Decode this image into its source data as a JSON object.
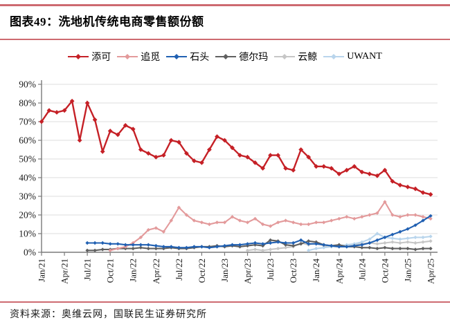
{
  "page": {
    "title": "图表49：洗地机传统电商零售额份额",
    "source": "资料来源：奥维云网，国联民生证券研究所"
  },
  "colors": {
    "separator": "#cd6a70",
    "grid": "#dcdcdc",
    "axis": "#7a7a7a",
    "tick_text": "#1a1a1a"
  },
  "legend": {
    "items": [
      {
        "id": "tianke",
        "label": "添可",
        "color": "#c52026"
      },
      {
        "id": "zhuimi",
        "label": "追觅",
        "color": "#e39a9b"
      },
      {
        "id": "shitou",
        "label": "石头",
        "color": "#2060b2"
      },
      {
        "id": "deerma",
        "label": "德尔玛",
        "color": "#5f5f5f"
      },
      {
        "id": "yunjing",
        "label": "云鲸",
        "color": "#c6c6c6"
      },
      {
        "id": "uwant",
        "label": "UWANT",
        "color": "#b9d5ec"
      }
    ]
  },
  "chart_data": {
    "type": "line",
    "title": "洗地机传统电商零售额份额",
    "xlabel": "",
    "ylabel": "",
    "ylim": [
      0,
      90
    ],
    "grid": true,
    "legend_position": "top",
    "y_tick_labels": [
      "0%",
      "10%",
      "20%",
      "30%",
      "40%",
      "50%",
      "60%",
      "70%",
      "80%",
      "90%"
    ],
    "x": [
      "Jan/21",
      "Feb/21",
      "Mar/21",
      "Apr/21",
      "May/21",
      "Jun/21",
      "Jul/21",
      "Aug/21",
      "Sep/21",
      "Oct/21",
      "Nov/21",
      "Dec/21",
      "Jan/22",
      "Feb/22",
      "Mar/22",
      "Apr/22",
      "May/22",
      "Jun/22",
      "Jul/22",
      "Aug/22",
      "Sep/22",
      "Oct/22",
      "Nov/22",
      "Dec/22",
      "Jan/23",
      "Feb/23",
      "Mar/23",
      "Apr/23",
      "May/23",
      "Jun/23",
      "Jul/23",
      "Aug/23",
      "Sep/23",
      "Oct/23",
      "Nov/23",
      "Dec/23",
      "Jan/24",
      "Feb/24",
      "Mar/24",
      "Apr/24",
      "May/24",
      "Jun/24",
      "Jul/24",
      "Aug/24",
      "Sep/24",
      "Oct/24",
      "Nov/24",
      "Dec/24",
      "Jan/25",
      "Feb/25",
      "Mar/25",
      "Apr/25"
    ],
    "x_tick_labels": [
      "Jan/21",
      "Apr/21",
      "Jul/21",
      "Oct/21",
      "Jan/22",
      "Apr/22",
      "Jul/22",
      "Oct/22",
      "Jan/23",
      "Apr/23",
      "Jul/23",
      "Oct/23",
      "Jan/24",
      "Apr/24",
      "Jul/24",
      "Oct/24",
      "Jan/25",
      "Apr/25"
    ],
    "unit": "percent",
    "series": [
      {
        "id": "yunjing",
        "name": "云鲸",
        "color": "#c6c6c6",
        "values": [
          null,
          null,
          null,
          null,
          null,
          null,
          null,
          null,
          null,
          null,
          null,
          null,
          null,
          null,
          null,
          null,
          null,
          null,
          null,
          null,
          null,
          null,
          null,
          null,
          null,
          null,
          null,
          1,
          1.5,
          1,
          1.5,
          2,
          2.5,
          3,
          5,
          4,
          5,
          3.5,
          3,
          3,
          3.5,
          4,
          4.5,
          5,
          4.5,
          5,
          5.5,
          5,
          5.5,
          5,
          5.5,
          6
        ]
      },
      {
        "id": "uwant",
        "name": "UWANT",
        "color": "#b9d5ec",
        "values": [
          null,
          null,
          null,
          null,
          null,
          null,
          null,
          null,
          null,
          null,
          null,
          null,
          null,
          null,
          null,
          null,
          null,
          null,
          null,
          null,
          null,
          null,
          null,
          null,
          null,
          null,
          null,
          null,
          null,
          null,
          null,
          null,
          null,
          null,
          null,
          1,
          2,
          2.5,
          3,
          3.5,
          4,
          4.5,
          5.5,
          7,
          10,
          8,
          7.5,
          7,
          7.5,
          8,
          8,
          8.5
        ]
      },
      {
        "id": "deerma",
        "name": "德尔玛",
        "color": "#5f5f5f",
        "values": [
          null,
          null,
          null,
          null,
          null,
          null,
          1,
          1,
          1.5,
          1.5,
          2,
          2,
          2,
          2.5,
          2,
          2,
          2,
          2.5,
          2,
          2,
          2.5,
          3,
          3,
          3.5,
          3,
          3.5,
          3,
          3.5,
          4,
          3.5,
          6.5,
          6,
          4,
          3.5,
          4.5,
          6,
          5.5,
          4,
          3.5,
          4,
          3,
          3,
          2.5,
          2.5,
          2,
          2.5,
          2,
          2,
          2,
          1.5,
          2,
          2
        ]
      },
      {
        "id": "zhuimi",
        "name": "追觅",
        "color": "#e39a9b",
        "values": [
          null,
          null,
          null,
          null,
          null,
          null,
          null,
          null,
          null,
          1,
          2,
          3,
          5,
          8,
          12,
          13,
          11,
          17,
          24,
          20,
          17,
          16,
          15,
          16,
          16,
          19,
          17,
          16,
          18,
          15,
          14,
          16,
          17,
          16,
          15,
          15,
          16,
          16,
          17,
          18,
          19,
          18,
          19,
          20,
          21,
          27,
          20,
          19,
          20,
          20,
          19,
          18
        ]
      },
      {
        "id": "shitou",
        "name": "石头",
        "color": "#2060b2",
        "values": [
          null,
          null,
          null,
          null,
          null,
          null,
          5,
          5,
          5,
          4.5,
          4.5,
          4,
          4,
          4,
          4,
          3.5,
          3,
          3,
          2.5,
          2.5,
          3,
          3,
          2.5,
          3,
          3.5,
          4,
          4,
          4.5,
          5,
          4.5,
          5,
          5.5,
          5,
          5,
          6.5,
          4.5,
          4.5,
          4,
          3.5,
          3,
          3,
          3.5,
          4,
          5,
          6.5,
          8,
          9.5,
          11,
          12.5,
          14.5,
          17,
          19.5
        ]
      },
      {
        "id": "tianke",
        "name": "添可",
        "color": "#c52026",
        "values": [
          70,
          76,
          75,
          76,
          81,
          60,
          80,
          71,
          54,
          65,
          63,
          68,
          66,
          55,
          53,
          51,
          52,
          60,
          59,
          53,
          49,
          48,
          55,
          62,
          60,
          56,
          52,
          51,
          48,
          45,
          52,
          52,
          45,
          44,
          55,
          51,
          46,
          46,
          45,
          42,
          44,
          46,
          43,
          42,
          41,
          44,
          38,
          36,
          35,
          34,
          32,
          31
        ]
      }
    ]
  }
}
